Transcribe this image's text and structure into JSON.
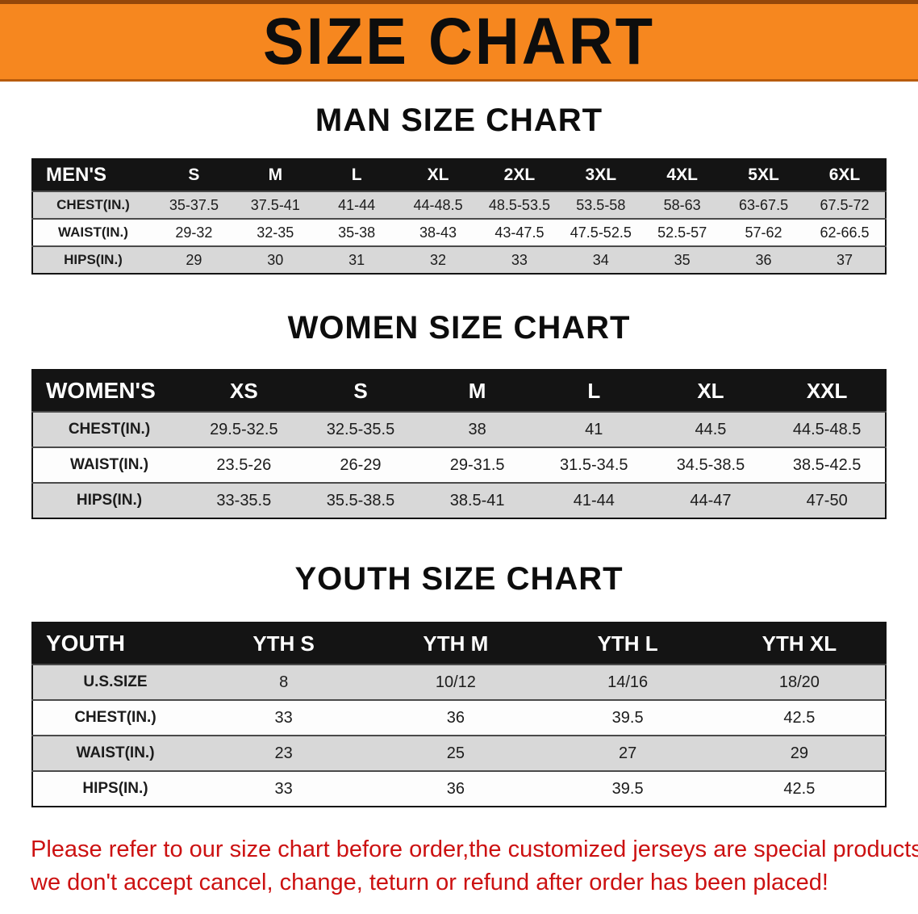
{
  "banner": {
    "title": "SIZE CHART"
  },
  "sections": {
    "men": {
      "heading": "MAN SIZE CHART",
      "table": {
        "header": [
          "MEN'S",
          "S",
          "M",
          "L",
          "XL",
          "2XL",
          "3XL",
          "4XL",
          "5XL",
          "6XL"
        ],
        "rows": [
          [
            "CHEST(IN.)",
            "35-37.5",
            "37.5-41",
            "41-44",
            "44-48.5",
            "48.5-53.5",
            "53.5-58",
            "58-63",
            "63-67.5",
            "67.5-72"
          ],
          [
            "WAIST(IN.)",
            "29-32",
            "32-35",
            "35-38",
            "38-43",
            "43-47.5",
            "47.5-52.5",
            "52.5-57",
            "57-62",
            "62-66.5"
          ],
          [
            "HIPS(IN.)",
            "29",
            "30",
            "31",
            "32",
            "33",
            "34",
            "35",
            "36",
            "37"
          ]
        ]
      }
    },
    "women": {
      "heading": "WOMEN SIZE CHART",
      "table": {
        "header": [
          "WOMEN'S",
          "XS",
          "S",
          "M",
          "L",
          "XL",
          "XXL"
        ],
        "rows": [
          [
            "CHEST(IN.)",
            "29.5-32.5",
            "32.5-35.5",
            "38",
            "41",
            "44.5",
            "44.5-48.5"
          ],
          [
            "WAIST(IN.)",
            "23.5-26",
            "26-29",
            "29-31.5",
            "31.5-34.5",
            "34.5-38.5",
            "38.5-42.5"
          ],
          [
            "HIPS(IN.)",
            "33-35.5",
            "35.5-38.5",
            "38.5-41",
            "41-44",
            "44-47",
            "47-50"
          ]
        ]
      }
    },
    "youth": {
      "heading": "YOUTH SIZE CHART",
      "table": {
        "header": [
          "YOUTH",
          "YTH S",
          "YTH M",
          "YTH L",
          "YTH XL"
        ],
        "rows": [
          [
            "U.S.SIZE",
            "8",
            "10/12",
            "14/16",
            "18/20"
          ],
          [
            "CHEST(IN.)",
            "33",
            "36",
            "39.5",
            "42.5"
          ],
          [
            "WAIST(IN.)",
            "23",
            "25",
            "27",
            "29"
          ],
          [
            "HIPS(IN.)",
            "33",
            "36",
            "39.5",
            "42.5"
          ]
        ]
      }
    }
  },
  "disclaimer": {
    "line1": "Please refer to our size chart before order,the customized jerseys are special products,",
    "line2": "we don't accept cancel, change, teturn or refund after order has been placed!"
  },
  "colors": {
    "banner_bg": "#f6871f",
    "table_header_bg": "#141414",
    "row_alt_bg": "#d8d8d8",
    "disclaimer_text": "#cc1111"
  }
}
